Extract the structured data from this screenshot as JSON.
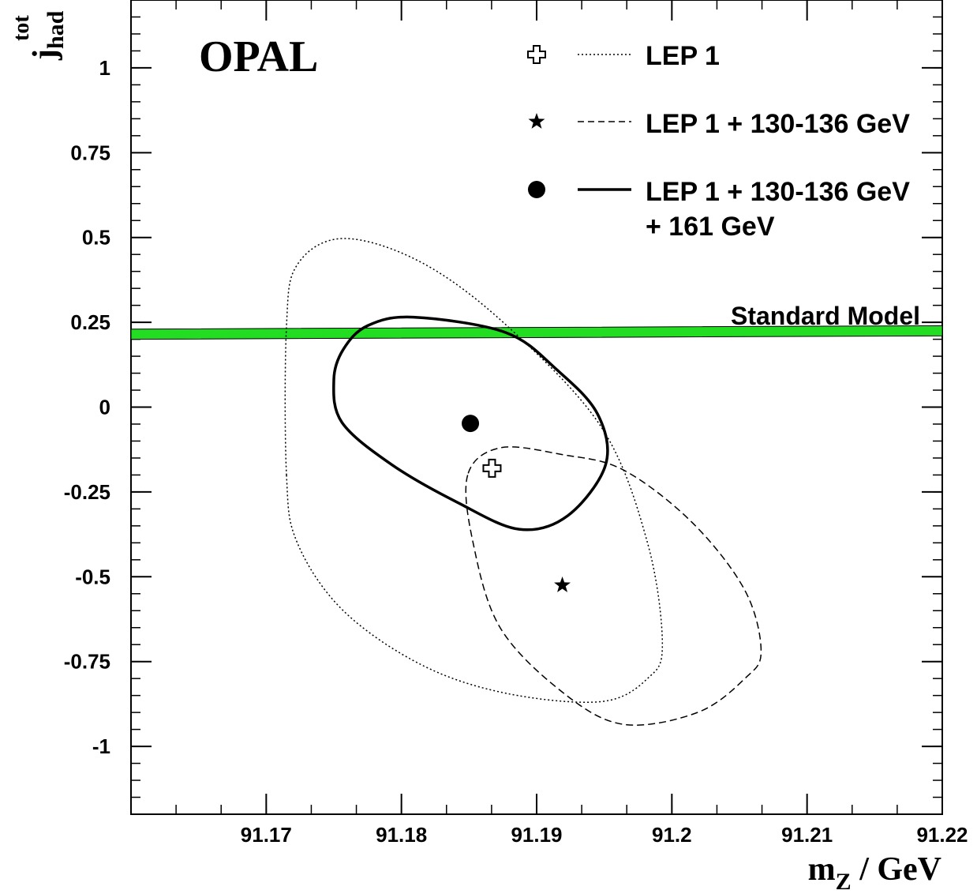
{
  "chart_data": {
    "type": "scatter",
    "title": "OPAL",
    "xlabel": {
      "main": "m",
      "sub": "Z",
      "unit": " / GeV"
    },
    "ylabel": {
      "main": "j",
      "sub": "had",
      "sup": "tot"
    },
    "xlim": [
      91.16,
      91.22
    ],
    "ylim": [
      -1.2,
      1.2
    ],
    "x_ticks": [
      91.17,
      91.18,
      91.19,
      91.2,
      91.21,
      91.22
    ],
    "x_tick_labels": [
      "91.17",
      "91.18",
      "91.19",
      "91.2",
      "91.21",
      "91.22"
    ],
    "y_ticks": [
      1,
      0.75,
      0.5,
      0.25,
      0,
      -0.25,
      -0.5,
      -0.75,
      -1
    ],
    "y_tick_labels": [
      "1",
      "0.75",
      "0.5",
      "0.25",
      "0",
      "-0.25",
      "-0.5",
      "-0.75",
      "-1"
    ],
    "standard_model": {
      "label": "Standard Model",
      "color": "#22dd22",
      "y_left": [
        0.2,
        0.23
      ],
      "y_right": [
        0.21,
        0.24
      ]
    },
    "series": [
      {
        "name": "LEP 1",
        "marker": "open-cross",
        "line_style": "dotted",
        "point": {
          "x": 91.1867,
          "y": -0.18
        },
        "contour": [
          [
            91.1715,
            -0.2
          ],
          [
            91.1723,
            -0.4
          ],
          [
            91.1757,
            -0.6
          ],
          [
            91.1815,
            -0.76
          ],
          [
            91.1878,
            -0.844
          ],
          [
            91.1948,
            -0.868
          ],
          [
            91.1982,
            -0.8
          ],
          [
            91.1993,
            -0.7
          ],
          [
            91.1982,
            -0.4
          ],
          [
            91.1948,
            -0.06
          ],
          [
            91.1878,
            0.24
          ],
          [
            91.1815,
            0.426
          ],
          [
            91.1757,
            0.497
          ],
          [
            91.1723,
            0.42
          ],
          [
            91.1715,
            0.24
          ],
          [
            91.1715,
            -0.2
          ]
        ]
      },
      {
        "name": "LEP 1 + 130-136 GeV",
        "marker": "star",
        "line_style": "dashed",
        "point": {
          "x": 91.1919,
          "y": -0.525
        },
        "contour": [
          [
            91.1849,
            -0.2
          ],
          [
            91.1853,
            -0.4
          ],
          [
            91.1873,
            -0.65
          ],
          [
            91.1919,
            -0.84
          ],
          [
            91.1964,
            -0.935
          ],
          [
            91.2019,
            -0.9
          ],
          [
            91.2054,
            -0.8
          ],
          [
            91.2066,
            -0.72
          ],
          [
            91.2054,
            -0.54
          ],
          [
            91.2015,
            -0.34
          ],
          [
            91.1964,
            -0.185
          ],
          [
            91.1919,
            -0.14
          ],
          [
            91.1873,
            -0.12
          ],
          [
            91.1849,
            -0.2
          ]
        ]
      },
      {
        "name": "LEP 1 + 130-136 GeV + 161 GeV",
        "marker": "filled-circle",
        "line_style": "solid",
        "point": {
          "x": 91.1851,
          "y": -0.048
        },
        "contour": [
          [
            91.175,
            0.08
          ],
          [
            91.1756,
            -0.045
          ],
          [
            91.1793,
            -0.17
          ],
          [
            91.1841,
            -0.28
          ],
          [
            91.1887,
            -0.36
          ],
          [
            91.1923,
            -0.32
          ],
          [
            91.1951,
            -0.17
          ],
          [
            91.1945,
            -0.02
          ],
          [
            91.1915,
            0.11
          ],
          [
            91.1877,
            0.22
          ],
          [
            91.1809,
            0.265
          ],
          [
            91.1775,
            0.24
          ],
          [
            91.1757,
            0.17
          ],
          [
            91.175,
            0.08
          ]
        ]
      }
    ]
  },
  "legend": [
    {
      "text": "LEP 1"
    },
    {
      "text": "LEP 1 + 130-136 GeV"
    },
    {
      "text": "LEP 1 + 130-136 GeV",
      "text2": "+ 161 GeV"
    }
  ]
}
